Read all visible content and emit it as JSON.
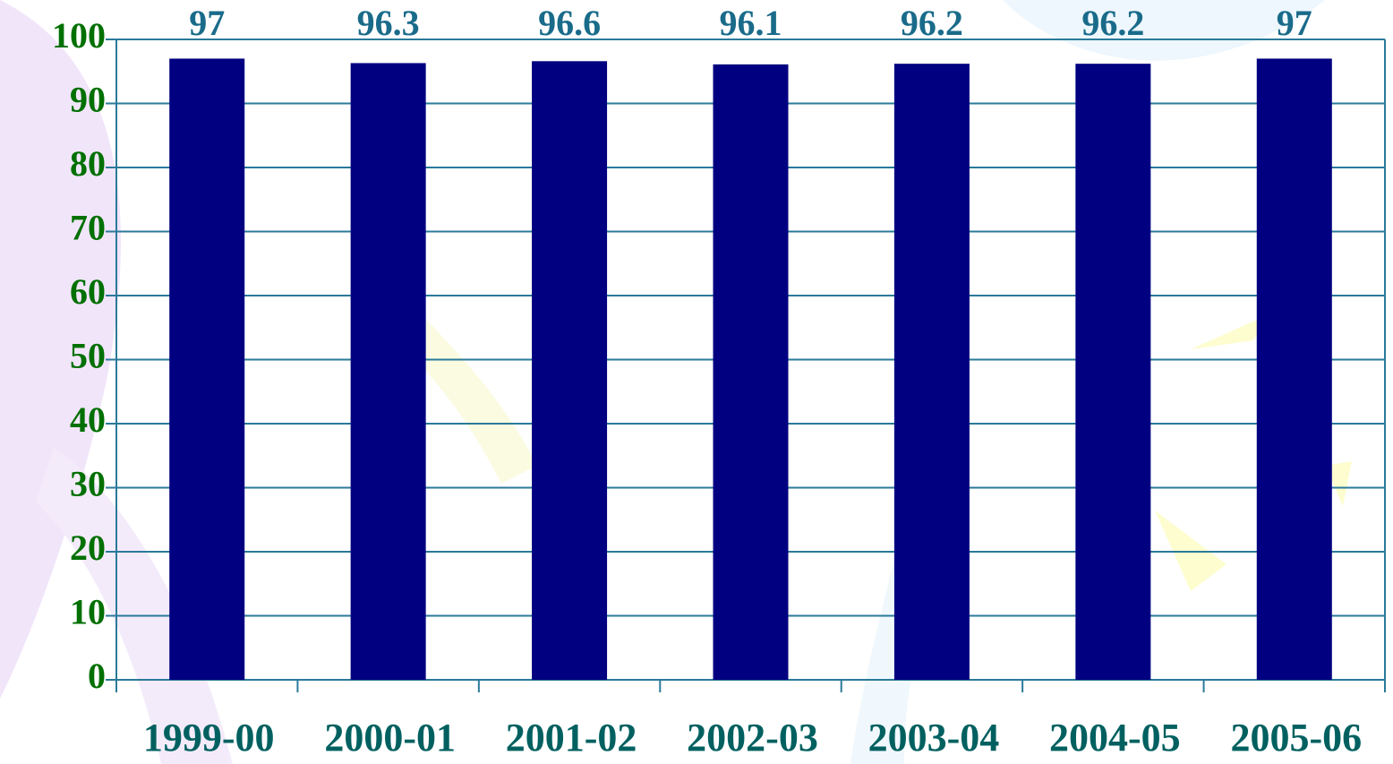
{
  "chart_data": {
    "type": "bar",
    "categories": [
      "1999-00",
      "2000-01",
      "2001-02",
      "2002-03",
      "2003-04",
      "2004-05",
      "2005-06"
    ],
    "values": [
      97,
      96.3,
      96.6,
      96.1,
      96.2,
      96.2,
      97
    ],
    "color": "#000080",
    "ylim": [
      0,
      100
    ],
    "yticks": [
      0,
      10,
      20,
      30,
      40,
      50,
      60,
      70,
      80,
      90,
      100
    ],
    "grid": true
  }
}
